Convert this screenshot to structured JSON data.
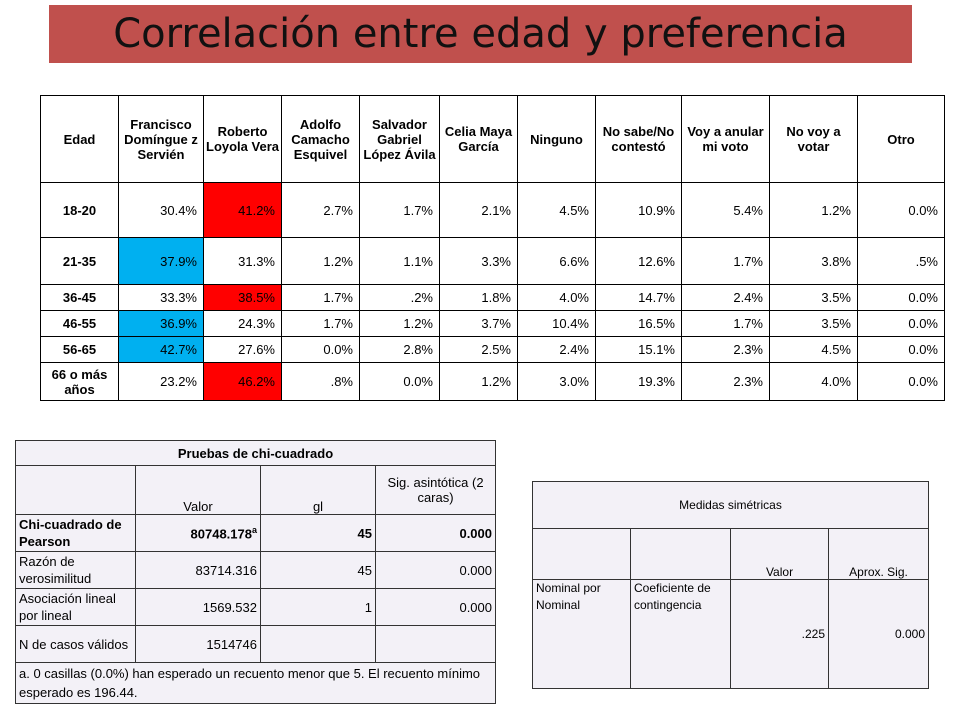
{
  "title": "Correlación entre edad y preferencia",
  "main_table": {
    "headers": [
      "Edad",
      "Francisco Domíngue z Servién",
      "Roberto Loyola Vera",
      "Adolfo Camacho Esquivel",
      "Salvador Gabriel López Ávila",
      "Celia Maya García",
      "Ninguno",
      "No sabe/No contestó",
      "Voy a anular mi voto",
      "No voy a votar",
      "Otro"
    ],
    "rows": [
      {
        "age": "18-20",
        "values": [
          "30.4%",
          "41.2%",
          "2.7%",
          "1.7%",
          "2.1%",
          "4.5%",
          "10.9%",
          "5.4%",
          "1.2%",
          "0.0%"
        ],
        "highlight": [
          null,
          "red",
          null,
          null,
          null,
          null,
          null,
          null,
          null,
          null
        ]
      },
      {
        "age": "21-35",
        "values": [
          "37.9%",
          "31.3%",
          "1.2%",
          "1.1%",
          "3.3%",
          "6.6%",
          "12.6%",
          "1.7%",
          "3.8%",
          ".5%"
        ],
        "highlight": [
          "blue",
          null,
          null,
          null,
          null,
          null,
          null,
          null,
          null,
          null
        ]
      },
      {
        "age": "36-45",
        "values": [
          "33.3%",
          "38.5%",
          "1.7%",
          ".2%",
          "1.8%",
          "4.0%",
          "14.7%",
          "2.4%",
          "3.5%",
          "0.0%"
        ],
        "highlight": [
          null,
          "red",
          null,
          null,
          null,
          null,
          null,
          null,
          null,
          null
        ]
      },
      {
        "age": "46-55",
        "values": [
          "36.9%",
          "24.3%",
          "1.7%",
          "1.2%",
          "3.7%",
          "10.4%",
          "16.5%",
          "1.7%",
          "3.5%",
          "0.0%"
        ],
        "highlight": [
          "blue",
          null,
          null,
          null,
          null,
          null,
          null,
          null,
          null,
          null
        ]
      },
      {
        "age": "56-65",
        "values": [
          "42.7%",
          "27.6%",
          "0.0%",
          "2.8%",
          "2.5%",
          "2.4%",
          "15.1%",
          "2.3%",
          "4.5%",
          "0.0%"
        ],
        "highlight": [
          "blue",
          null,
          null,
          null,
          null,
          null,
          null,
          null,
          null,
          null
        ]
      },
      {
        "age": "66 o más años",
        "values": [
          "23.2%",
          "46.2%",
          ".8%",
          "0.0%",
          "1.2%",
          "3.0%",
          "19.3%",
          "2.3%",
          "4.0%",
          "0.0%"
        ],
        "highlight": [
          null,
          "red",
          null,
          null,
          null,
          null,
          null,
          null,
          null,
          null
        ]
      }
    ],
    "colors": {
      "red": "#ff0000",
      "blue": "#00b0f0"
    }
  },
  "chi_table": {
    "title": "Pruebas de chi-cuadrado",
    "col_headers": [
      "",
      "Valor",
      "gl",
      "Sig. asintótica (2 caras)"
    ],
    "rows": [
      {
        "label": "Chi-cuadrado de Pearson",
        "value": "80748.178",
        "sup": "a",
        "gl": "45",
        "sig": "0.000",
        "bold": true
      },
      {
        "label": "Razón de verosimilitud",
        "value": "83714.316",
        "sup": "",
        "gl": "45",
        "sig": "0.000",
        "bold": false
      },
      {
        "label": "Asociación lineal por lineal",
        "value": "1569.532",
        "sup": "",
        "gl": "1",
        "sig": "0.000",
        "bold": false
      },
      {
        "label": "N de casos válidos",
        "value": "1514746",
        "sup": "",
        "gl": "",
        "sig": "",
        "bold": false
      }
    ],
    "footnote": "a. 0 casillas (0.0%) han esperado un recuento menor que 5. El recuento mínimo esperado es 196.44."
  },
  "sym_table": {
    "title": "Medidas simétricas",
    "col_headers": [
      "",
      "",
      "Valor",
      "Aprox. Sig."
    ],
    "row": {
      "label1": "Nominal por Nominal",
      "label2": "Coeficiente de contingencia",
      "value": ".225",
      "sig": "0.000"
    }
  },
  "colors": {
    "title_bg": "#c0504d",
    "table_bg": "#f3f1f7"
  }
}
